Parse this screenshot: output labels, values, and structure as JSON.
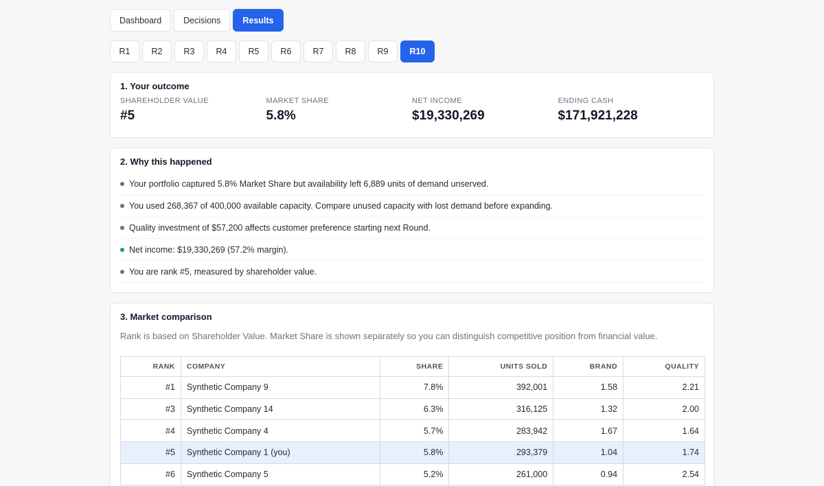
{
  "tabs": [
    "Dashboard",
    "Decisions",
    "Results"
  ],
  "active_tab": "Results",
  "rounds": [
    "R1",
    "R2",
    "R3",
    "R4",
    "R5",
    "R6",
    "R7",
    "R8",
    "R9",
    "R10"
  ],
  "active_round": "R10",
  "outcome": {
    "title": "1. Your outcome",
    "metrics": [
      {
        "label": "SHAREHOLDER VALUE",
        "value": "#5"
      },
      {
        "label": "MARKET SHARE",
        "value": "5.8%"
      },
      {
        "label": "NET INCOME",
        "value": "$19,330,269"
      },
      {
        "label": "ENDING CASH",
        "value": "$171,921,228"
      }
    ]
  },
  "why": {
    "title": "2. Why this happened",
    "items": [
      {
        "text": "Your portfolio captured 5.8% Market Share but availability left 6,889 units of demand unserved.",
        "status": "neutral"
      },
      {
        "text": "You used 268,367 of 400,000 available capacity. Compare unused capacity with lost demand before expanding.",
        "status": "neutral"
      },
      {
        "text": "Quality investment of $57,200 affects customer preference starting next Round.",
        "status": "neutral"
      },
      {
        "text": "Net income: $19,330,269 (57.2% margin).",
        "status": "good"
      },
      {
        "text": "You are rank #5, measured by shareholder value.",
        "status": "neutral"
      }
    ]
  },
  "comparison": {
    "title": "3. Market comparison",
    "note": "Rank is based on Shareholder Value. Market Share is shown separately so you can distinguish competitive position from financial value.",
    "columns": [
      "RANK",
      "COMPANY",
      "SHARE",
      "UNITS SOLD",
      "BRAND",
      "QUALITY"
    ],
    "rows": [
      {
        "rank": "#1",
        "company": "Synthetic Company 9",
        "share": "7.8%",
        "units": "392,001",
        "brand": "1.58",
        "quality": "2.21",
        "you": false
      },
      {
        "rank": "#3",
        "company": "Synthetic Company 14",
        "share": "6.3%",
        "units": "316,125",
        "brand": "1.32",
        "quality": "2.00",
        "you": false
      },
      {
        "rank": "#4",
        "company": "Synthetic Company 4",
        "share": "5.7%",
        "units": "283,942",
        "brand": "1.67",
        "quality": "1.64",
        "you": false
      },
      {
        "rank": "#5",
        "company": "Synthetic Company 1 (you)",
        "share": "5.8%",
        "units": "293,379",
        "brand": "1.04",
        "quality": "1.74",
        "you": true
      },
      {
        "rank": "#6",
        "company": "Synthetic Company 5",
        "share": "5.2%",
        "units": "261,000",
        "brand": "0.94",
        "quality": "2.54",
        "you": false
      }
    ]
  },
  "colors": {
    "accent": "#2563eb",
    "highlight_row": "#e8f0fd",
    "good_dot": "#16a34a",
    "neutral_dot": "#64748b"
  }
}
